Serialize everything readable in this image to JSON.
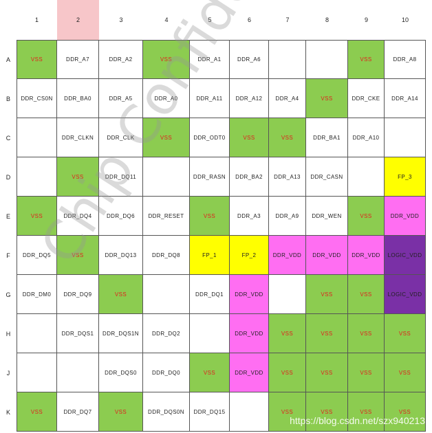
{
  "columns": [
    "1",
    "2",
    "3",
    "4",
    "5",
    "6",
    "7",
    "8",
    "9",
    "10"
  ],
  "rows": [
    {
      "label": "A",
      "cells": [
        {
          "t": "VSS",
          "c": "green"
        },
        {
          "t": "DDR_A7",
          "c": ""
        },
        {
          "t": "DDR_A2",
          "c": ""
        },
        {
          "t": "VSS",
          "c": "green"
        },
        {
          "t": "DDR_A1",
          "c": ""
        },
        {
          "t": "DDR_A6",
          "c": ""
        },
        {
          "t": "",
          "c": ""
        },
        {
          "t": "",
          "c": ""
        },
        {
          "t": "VSS",
          "c": "green"
        },
        {
          "t": "DDR_A8",
          "c": ""
        }
      ]
    },
    {
      "label": "B",
      "cells": [
        {
          "t": "DDR_CS0N",
          "c": ""
        },
        {
          "t": "DDR_BA0",
          "c": ""
        },
        {
          "t": "DDR_A5",
          "c": ""
        },
        {
          "t": "DDR_A0",
          "c": ""
        },
        {
          "t": "DDR_A11",
          "c": ""
        },
        {
          "t": "DDR_A12",
          "c": ""
        },
        {
          "t": "DDR_A4",
          "c": ""
        },
        {
          "t": "VSS",
          "c": "green"
        },
        {
          "t": "DDR_CKE",
          "c": ""
        },
        {
          "t": "DDR_A14",
          "c": ""
        }
      ]
    },
    {
      "label": "C",
      "cells": [
        {
          "t": "",
          "c": ""
        },
        {
          "t": "DDR_CLKN",
          "c": ""
        },
        {
          "t": "DDR_CLK",
          "c": ""
        },
        {
          "t": "VSS",
          "c": "green"
        },
        {
          "t": "DDR_ODT0",
          "c": ""
        },
        {
          "t": "VSS",
          "c": "green"
        },
        {
          "t": "VSS",
          "c": "green"
        },
        {
          "t": "DDR_BA1",
          "c": ""
        },
        {
          "t": "DDR_A10",
          "c": ""
        },
        {
          "t": "",
          "c": ""
        }
      ]
    },
    {
      "label": "D",
      "cells": [
        {
          "t": "",
          "c": ""
        },
        {
          "t": "VSS",
          "c": "green"
        },
        {
          "t": "DDR_DQ11",
          "c": ""
        },
        {
          "t": "",
          "c": ""
        },
        {
          "t": "DDR_RASN",
          "c": ""
        },
        {
          "t": "DDR_BA2",
          "c": ""
        },
        {
          "t": "DDR_A13",
          "c": ""
        },
        {
          "t": "DDR_CASN",
          "c": ""
        },
        {
          "t": "",
          "c": ""
        },
        {
          "t": "FP_3",
          "c": "yellow"
        }
      ]
    },
    {
      "label": "E",
      "cells": [
        {
          "t": "VSS",
          "c": "green"
        },
        {
          "t": "DDR_DQ4",
          "c": ""
        },
        {
          "t": "DDR_DQ6",
          "c": ""
        },
        {
          "t": "DDR_RESET",
          "c": ""
        },
        {
          "t": "VSS",
          "c": "green"
        },
        {
          "t": "DDR_A3",
          "c": ""
        },
        {
          "t": "DDR_A9",
          "c": ""
        },
        {
          "t": "DDR_WEN",
          "c": ""
        },
        {
          "t": "VSS",
          "c": "green"
        },
        {
          "t": "DDR_VDD",
          "c": "magenta"
        }
      ]
    },
    {
      "label": "F",
      "cells": [
        {
          "t": "DDR_DQ5",
          "c": ""
        },
        {
          "t": "VSS",
          "c": "green"
        },
        {
          "t": "DDR_DQ13",
          "c": ""
        },
        {
          "t": "DDR_DQ8",
          "c": ""
        },
        {
          "t": "FP_1",
          "c": "yellow"
        },
        {
          "t": "FP_2",
          "c": "yellow"
        },
        {
          "t": "DDR_VDD",
          "c": "magenta"
        },
        {
          "t": "DDR_VDD",
          "c": "magenta"
        },
        {
          "t": "DDR_VDD",
          "c": "magenta"
        },
        {
          "t": "LOGIC_VDD",
          "c": "purple"
        }
      ]
    },
    {
      "label": "G",
      "cells": [
        {
          "t": "DDR_DM0",
          "c": ""
        },
        {
          "t": "DDR_DQ9",
          "c": ""
        },
        {
          "t": "VSS",
          "c": "green"
        },
        {
          "t": "",
          "c": ""
        },
        {
          "t": "DDR_DQ1",
          "c": ""
        },
        {
          "t": "DDR_VDD",
          "c": "magenta"
        },
        {
          "t": "",
          "c": ""
        },
        {
          "t": "VSS",
          "c": "green"
        },
        {
          "t": "VSS",
          "c": "green"
        },
        {
          "t": "LOGIC_VDD",
          "c": "purple"
        }
      ]
    },
    {
      "label": "H",
      "cells": [
        {
          "t": "",
          "c": ""
        },
        {
          "t": "DDR_DQS1",
          "c": ""
        },
        {
          "t": "DDR_DQS1N",
          "c": ""
        },
        {
          "t": "DDR_DQ2",
          "c": ""
        },
        {
          "t": "",
          "c": ""
        },
        {
          "t": "DDR_VDD",
          "c": "magenta"
        },
        {
          "t": "VSS",
          "c": "green"
        },
        {
          "t": "VSS",
          "c": "green"
        },
        {
          "t": "VSS",
          "c": "green"
        },
        {
          "t": "VSS",
          "c": "green"
        }
      ]
    },
    {
      "label": "J",
      "cells": [
        {
          "t": "",
          "c": ""
        },
        {
          "t": "",
          "c": ""
        },
        {
          "t": "DDR_DQS0",
          "c": ""
        },
        {
          "t": "DDR_DQ0",
          "c": ""
        },
        {
          "t": "VSS",
          "c": "green"
        },
        {
          "t": "DDR_VDD",
          "c": "magenta"
        },
        {
          "t": "VSS",
          "c": "green"
        },
        {
          "t": "VSS",
          "c": "green"
        },
        {
          "t": "VSS",
          "c": "green"
        },
        {
          "t": "VSS",
          "c": "green"
        }
      ]
    },
    {
      "label": "K",
      "cells": [
        {
          "t": "VSS",
          "c": "green"
        },
        {
          "t": "DDR_DQ7",
          "c": ""
        },
        {
          "t": "VSS",
          "c": "green"
        },
        {
          "t": "DDR_DQS0N",
          "c": ""
        },
        {
          "t": "DDR_DQ15",
          "c": ""
        },
        {
          "t": "",
          "c": ""
        },
        {
          "t": "VSS",
          "c": "green"
        },
        {
          "t": "VSS",
          "c": "green"
        },
        {
          "t": "VSS",
          "c": "green"
        },
        {
          "t": "VSS",
          "c": "green"
        }
      ]
    }
  ],
  "highlight_column": "2",
  "watermark": "Chip Confidential",
  "source_url": "https://blog.csdn.net/szx940213",
  "colors": {
    "vss": "#8ccc50",
    "fp": "#ffff00",
    "ddr_vdd": "#ff6ef2",
    "logic_vdd": "#7a30a6",
    "vss_text": "#e0221d"
  }
}
